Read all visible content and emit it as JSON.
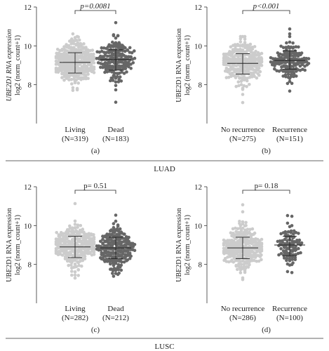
{
  "figure": {
    "sections": [
      {
        "label": "LUAD"
      },
      {
        "label": "LUSC"
      }
    ]
  },
  "chart_data": [
    {
      "type": "scatter",
      "subtype": "dot-strip with mean and SD bars",
      "panel": "(a)",
      "ylabel_line1": "UBE2D1 RNA expression",
      "ylabel_line2": "log2 (norm_count+1)",
      "ylabel_italic": true,
      "ylim": [
        6,
        12
      ],
      "yticks": [
        8,
        10,
        12
      ],
      "pvalue": "p=0.0081",
      "pvalue_italic": true,
      "groups": [
        {
          "name": "Living",
          "n": "(N=319)",
          "color": "#cccccc",
          "mean": 9.15,
          "sd_low": 8.6,
          "sd_high": 9.65,
          "min": 7.7,
          "max": 10.6
        },
        {
          "name": "Dead",
          "n": "(N=183)",
          "color": "#666666",
          "mean": 9.3,
          "sd_low": 8.75,
          "sd_high": 9.8,
          "min": 7.1,
          "max": 11.2
        }
      ]
    },
    {
      "type": "scatter",
      "subtype": "dot-strip with mean and SD bars",
      "panel": "(b)",
      "ylabel_line1": "UBE2D1 RNA expression",
      "ylabel_line2": "log2 (norm_count+1)",
      "ylabel_italic": false,
      "ylim": [
        6,
        12
      ],
      "yticks": [
        8,
        10,
        12
      ],
      "pvalue": "p<0.001",
      "pvalue_italic": true,
      "groups": [
        {
          "name": "No recurrence",
          "n": "(N=275)",
          "color": "#cccccc",
          "mean": 9.1,
          "sd_low": 8.55,
          "sd_high": 9.6,
          "min": 7.1,
          "max": 10.5
        },
        {
          "name": "Recurrence",
          "n": "(N=151)",
          "color": "#666666",
          "mean": 9.25,
          "sd_low": 8.8,
          "sd_high": 9.75,
          "min": 7.7,
          "max": 10.9
        }
      ]
    },
    {
      "type": "scatter",
      "subtype": "dot-strip with mean and SD bars",
      "panel": "(c)",
      "ylabel_line1": "UBE2D1 RNA expression",
      "ylabel_line2": "log2 (norm_count+1)",
      "ylabel_italic": false,
      "ylim": [
        6,
        12
      ],
      "yticks": [
        8,
        10,
        12
      ],
      "pvalue": "p= 0.51",
      "pvalue_italic": false,
      "groups": [
        {
          "name": "Living",
          "n": "(N=282)",
          "color": "#cccccc",
          "mean": 8.9,
          "sd_low": 8.35,
          "sd_high": 9.45,
          "min": 7.3,
          "max": 11.1
        },
        {
          "name": "Dead",
          "n": "(N=212)",
          "color": "#666666",
          "mean": 8.85,
          "sd_low": 8.3,
          "sd_high": 9.4,
          "min": 7.4,
          "max": 10.5
        }
      ]
    },
    {
      "type": "scatter",
      "subtype": "dot-strip with mean and SD bars",
      "panel": "(d)",
      "ylabel_line1": "UBE2D1 RNA expression",
      "ylabel_line2": "log2 (norm_count+1)",
      "ylabel_italic": false,
      "ylim": [
        6,
        12
      ],
      "yticks": [
        8,
        10,
        12
      ],
      "pvalue": "p= 0.18",
      "pvalue_italic": false,
      "groups": [
        {
          "name": "No recurrence",
          "n": "(N=286)",
          "color": "#cccccc",
          "mean": 8.85,
          "sd_low": 8.3,
          "sd_high": 9.4,
          "min": 7.2,
          "max": 11.1
        },
        {
          "name": "Recurrence",
          "n": "(N=100)",
          "color": "#666666",
          "mean": 9.0,
          "sd_low": 8.45,
          "sd_high": 9.45,
          "min": 7.6,
          "max": 10.5
        }
      ]
    }
  ]
}
